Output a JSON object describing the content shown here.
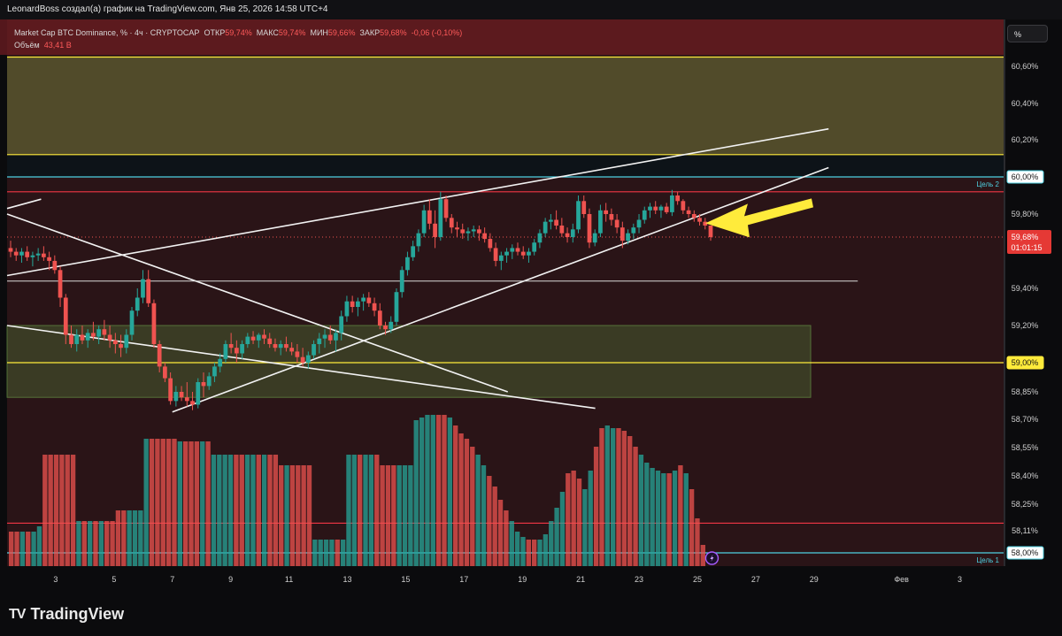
{
  "header": {
    "title": "LeonardBoss создал(а) график на TradingView.com, Янв 25, 2026 14:58 UTC+4"
  },
  "legend": {
    "symbol": "Market Cap BTC Dominance, %",
    "interval": "4ч",
    "exchange": "CRYPTOCAP",
    "open_label": "ОТКР",
    "open_value": "59,74%",
    "high_label": "МАКС",
    "high_value": "59,74%",
    "low_label": "МИН",
    "low_value": "59,66%",
    "close_label": "ЗАКР",
    "close_value": "59,68%",
    "change": "-0,06 (-0,10%)",
    "volume_label": "Объём",
    "volume_value": "43,41 B"
  },
  "unit_button": "%",
  "colors": {
    "bg": "#2a1417",
    "up": "#26a69a",
    "down": "#ef5350",
    "zone_top": "#55512c",
    "zone_mid": "#485b2f",
    "yellow": "#ffeb3b",
    "cyan": "#4dd0e1",
    "red": "#f23645"
  },
  "footer": {
    "logo_text": "TradingView"
  },
  "chart_data": {
    "type": "candlestick",
    "y_range": [
      58.0,
      60.7
    ],
    "price_labels": [
      "60,60%",
      "60,40%",
      "60,20%",
      "59,80%",
      "59,40%",
      "59,20%",
      "58,85%",
      "58,70%",
      "58,55%",
      "58,40%",
      "58,25%",
      "58,11%"
    ],
    "price_label_values": [
      60.6,
      60.4,
      60.2,
      59.8,
      59.4,
      59.2,
      58.85,
      58.7,
      58.55,
      58.4,
      58.25,
      58.11
    ],
    "level_tags": [
      {
        "text": "60,00%",
        "value": 60.0,
        "style": "cyan",
        "note": "Цель 2"
      },
      {
        "text": "59,00%",
        "value": 59.0,
        "style": "yellow"
      },
      {
        "text": "58,00%",
        "value": 58.0,
        "style": "cyan",
        "note": "Цель 1"
      }
    ],
    "current_price": {
      "text": "59,68%",
      "countdown": "01:01:15",
      "value": 59.68
    },
    "x_labels": [
      "3",
      "5",
      "7",
      "9",
      "11",
      "13",
      "15",
      "17",
      "19",
      "21",
      "23",
      "25",
      "27",
      "29",
      "Фев",
      "3"
    ],
    "x_label_dates": [
      "2026-01-03",
      "2026-01-05",
      "2026-01-07",
      "2026-01-09",
      "2026-01-11",
      "2026-01-13",
      "2026-01-15",
      "2026-01-17",
      "2026-01-19",
      "2026-01-21",
      "2026-01-23",
      "2026-01-25",
      "2026-01-27",
      "2026-01-29",
      "2026-02-01",
      "2026-02-03"
    ],
    "x_range": [
      "2026-01-01T08:00",
      "2026-02-04T12:00"
    ],
    "zones": [
      {
        "name": "upper-zone",
        "from": 60.12,
        "to": 60.65
      },
      {
        "name": "mid-zone",
        "from": 58.82,
        "to": 59.2
      }
    ],
    "horizontal_lines": [
      {
        "value": 60.65,
        "color": "yellow"
      },
      {
        "value": 60.12,
        "color": "yellow"
      },
      {
        "value": 60.0,
        "color": "cyan"
      },
      {
        "value": 59.92,
        "color": "red"
      },
      {
        "value": 59.0,
        "color": "yellow"
      },
      {
        "value": 58.15,
        "color": "red"
      },
      {
        "value": 58.0,
        "color": "cyan"
      }
    ],
    "trend_lines": [
      {
        "p1": [
          "2026-01-01T08:00",
          59.47
        ],
        "p2": [
          "2026-01-29T12:00",
          60.26
        ]
      },
      {
        "p1": [
          "2026-01-07T00:00",
          58.74
        ],
        "p2": [
          "2026-01-29T12:00",
          60.05
        ]
      },
      {
        "p1": [
          "2026-01-01T08:00",
          59.8
        ],
        "p2": [
          "2026-01-18T12:00",
          58.85
        ]
      },
      {
        "p1": [
          "2026-01-01T08:00",
          59.2
        ],
        "p2": [
          "2026-01-21T12:00",
          58.76
        ]
      },
      {
        "p1": [
          "2026-01-01T08:00",
          59.83
        ],
        "p2": [
          "2026-01-02T12:00",
          59.88
        ]
      },
      {
        "p1": [
          "2026-01-01T08:00",
          59.44
        ],
        "p2": [
          "2026-01-30T12:00",
          59.44
        ]
      }
    ],
    "candles": [
      [
        59.62,
        59.66,
        59.57,
        59.6
      ],
      [
        59.6,
        59.62,
        59.55,
        59.58
      ],
      [
        59.58,
        59.62,
        59.54,
        59.6
      ],
      [
        59.6,
        59.63,
        59.55,
        59.57
      ],
      [
        59.57,
        59.6,
        59.52,
        59.58
      ],
      [
        59.58,
        59.62,
        59.55,
        59.59
      ],
      [
        59.59,
        59.63,
        59.55,
        59.57
      ],
      [
        59.57,
        59.6,
        59.5,
        59.55
      ],
      [
        59.55,
        59.58,
        59.48,
        59.5
      ],
      [
        59.5,
        59.52,
        59.3,
        59.35
      ],
      [
        59.35,
        59.37,
        59.1,
        59.15
      ],
      [
        59.15,
        59.2,
        59.08,
        59.1
      ],
      [
        59.1,
        59.18,
        59.06,
        59.15
      ],
      [
        59.15,
        59.2,
        59.1,
        59.12
      ],
      [
        59.12,
        59.18,
        59.08,
        59.16
      ],
      [
        59.16,
        59.22,
        59.12,
        59.14
      ],
      [
        59.14,
        59.2,
        59.1,
        59.18
      ],
      [
        59.18,
        59.23,
        59.12,
        59.15
      ],
      [
        59.15,
        59.2,
        59.08,
        59.12
      ],
      [
        59.12,
        59.16,
        59.05,
        59.1
      ],
      [
        59.1,
        59.15,
        59.03,
        59.08
      ],
      [
        59.08,
        59.18,
        59.05,
        59.15
      ],
      [
        59.15,
        59.3,
        59.12,
        59.28
      ],
      [
        59.28,
        59.4,
        59.25,
        59.35
      ],
      [
        59.35,
        59.5,
        59.32,
        59.45
      ],
      [
        59.45,
        59.5,
        59.3,
        59.32
      ],
      [
        59.32,
        59.34,
        59.08,
        59.1
      ],
      [
        59.1,
        59.12,
        58.95,
        58.98
      ],
      [
        58.98,
        59.0,
        58.9,
        58.92
      ],
      [
        58.92,
        58.95,
        58.78,
        58.8
      ],
      [
        58.8,
        58.88,
        58.77,
        58.85
      ],
      [
        58.85,
        58.88,
        58.8,
        58.82
      ],
      [
        58.82,
        58.9,
        58.77,
        58.8
      ],
      [
        58.8,
        58.85,
        58.75,
        58.78
      ],
      [
        58.78,
        58.92,
        58.76,
        58.9
      ],
      [
        58.9,
        58.95,
        58.82,
        58.88
      ],
      [
        58.88,
        58.95,
        58.86,
        58.93
      ],
      [
        58.93,
        59.0,
        58.9,
        58.98
      ],
      [
        58.98,
        59.05,
        58.95,
        59.02
      ],
      [
        59.02,
        59.12,
        59.0,
        59.1
      ],
      [
        59.1,
        59.16,
        59.05,
        59.08
      ],
      [
        59.08,
        59.12,
        59.0,
        59.05
      ],
      [
        59.05,
        59.12,
        59.02,
        59.1
      ],
      [
        59.1,
        59.16,
        59.08,
        59.14
      ],
      [
        59.14,
        59.17,
        59.1,
        59.12
      ],
      [
        59.12,
        59.16,
        59.08,
        59.15
      ],
      [
        59.15,
        59.18,
        59.1,
        59.13
      ],
      [
        59.13,
        59.16,
        59.08,
        59.1
      ],
      [
        59.1,
        59.13,
        59.06,
        59.08
      ],
      [
        59.08,
        59.12,
        59.04,
        59.1
      ],
      [
        59.1,
        59.14,
        59.06,
        59.08
      ],
      [
        59.08,
        59.11,
        59.04,
        59.06
      ],
      [
        59.06,
        59.1,
        59.0,
        59.03
      ],
      [
        59.03,
        59.08,
        58.98,
        59.0
      ],
      [
        59.0,
        59.06,
        58.97,
        59.04
      ],
      [
        59.04,
        59.12,
        59.02,
        59.1
      ],
      [
        59.1,
        59.16,
        59.05,
        59.13
      ],
      [
        59.13,
        59.18,
        59.08,
        59.15
      ],
      [
        59.15,
        59.2,
        59.1,
        59.12
      ],
      [
        59.12,
        59.18,
        59.06,
        59.16
      ],
      [
        59.16,
        59.28,
        59.12,
        59.25
      ],
      [
        59.25,
        59.36,
        59.22,
        59.33
      ],
      [
        59.33,
        59.36,
        59.27,
        59.3
      ],
      [
        59.3,
        59.35,
        59.25,
        59.33
      ],
      [
        59.33,
        59.37,
        59.28,
        59.35
      ],
      [
        59.35,
        59.38,
        59.3,
        59.32
      ],
      [
        59.32,
        59.35,
        59.25,
        59.28
      ],
      [
        59.28,
        59.32,
        59.18,
        59.2
      ],
      [
        59.2,
        59.22,
        59.15,
        59.18
      ],
      [
        59.18,
        59.25,
        59.16,
        59.22
      ],
      [
        59.22,
        59.4,
        59.2,
        59.38
      ],
      [
        59.38,
        59.52,
        59.35,
        59.5
      ],
      [
        59.5,
        59.6,
        59.47,
        59.57
      ],
      [
        59.57,
        59.66,
        59.55,
        59.63
      ],
      [
        59.63,
        59.72,
        59.6,
        59.7
      ],
      [
        59.7,
        59.85,
        59.68,
        59.82
      ],
      [
        59.82,
        59.88,
        59.72,
        59.75
      ],
      [
        59.75,
        59.82,
        59.62,
        59.68
      ],
      [
        59.68,
        59.92,
        59.66,
        59.88
      ],
      [
        59.88,
        59.9,
        59.76,
        59.78
      ],
      [
        59.78,
        59.8,
        59.7,
        59.73
      ],
      [
        59.73,
        59.76,
        59.68,
        59.72
      ],
      [
        59.72,
        59.75,
        59.67,
        59.7
      ],
      [
        59.7,
        59.73,
        59.66,
        59.71
      ],
      [
        59.71,
        59.74,
        59.68,
        59.72
      ],
      [
        59.72,
        59.74,
        59.66,
        59.7
      ],
      [
        59.7,
        59.73,
        59.65,
        59.67
      ],
      [
        59.67,
        59.7,
        59.6,
        59.62
      ],
      [
        59.62,
        59.65,
        59.52,
        59.55
      ],
      [
        59.55,
        59.6,
        59.5,
        59.58
      ],
      [
        59.58,
        59.62,
        59.54,
        59.6
      ],
      [
        59.6,
        59.64,
        59.56,
        59.62
      ],
      [
        59.62,
        59.65,
        59.58,
        59.6
      ],
      [
        59.6,
        59.63,
        59.56,
        59.58
      ],
      [
        59.58,
        59.62,
        59.54,
        59.6
      ],
      [
        59.6,
        59.67,
        59.58,
        59.65
      ],
      [
        59.65,
        59.72,
        59.62,
        59.7
      ],
      [
        59.7,
        59.78,
        59.68,
        59.76
      ],
      [
        59.76,
        59.8,
        59.72,
        59.77
      ],
      [
        59.77,
        59.82,
        59.72,
        59.74
      ],
      [
        59.74,
        59.78,
        59.68,
        59.7
      ],
      [
        59.7,
        59.73,
        59.65,
        59.68
      ],
      [
        59.68,
        59.75,
        59.65,
        59.72
      ],
      [
        59.72,
        59.9,
        59.7,
        59.87
      ],
      [
        59.87,
        59.9,
        59.78,
        59.8
      ],
      [
        59.8,
        59.83,
        59.62,
        59.65
      ],
      [
        59.65,
        59.72,
        59.63,
        59.7
      ],
      [
        59.7,
        59.85,
        59.68,
        59.82
      ],
      [
        59.82,
        59.86,
        59.76,
        59.8
      ],
      [
        59.8,
        59.83,
        59.74,
        59.77
      ],
      [
        59.77,
        59.8,
        59.7,
        59.73
      ],
      [
        59.73,
        59.76,
        59.62,
        59.66
      ],
      [
        59.66,
        59.72,
        59.64,
        59.7
      ],
      [
        59.7,
        59.75,
        59.67,
        59.73
      ],
      [
        59.73,
        59.8,
        59.7,
        59.77
      ],
      [
        59.77,
        59.84,
        59.75,
        59.82
      ],
      [
        59.82,
        59.86,
        59.78,
        59.84
      ],
      [
        59.84,
        59.87,
        59.8,
        59.82
      ],
      [
        59.82,
        59.85,
        59.78,
        59.84
      ],
      [
        59.84,
        59.86,
        59.8,
        59.81
      ],
      [
        59.81,
        59.93,
        59.79,
        59.9
      ],
      [
        59.9,
        59.92,
        59.85,
        59.87
      ],
      [
        59.87,
        59.88,
        59.8,
        59.82
      ],
      [
        59.82,
        59.84,
        59.78,
        59.8
      ],
      [
        59.8,
        59.82,
        59.76,
        59.78
      ],
      [
        59.78,
        59.8,
        59.74,
        59.76
      ],
      [
        59.76,
        59.78,
        59.72,
        59.74
      ],
      [
        59.74,
        59.74,
        59.66,
        59.68
      ]
    ],
    "volume_levels": [
      0.13,
      0.13,
      0.13,
      0.13,
      0.13,
      0.15,
      0.42,
      0.42,
      0.42,
      0.42,
      0.42,
      0.42,
      0.17,
      0.17,
      0.17,
      0.17,
      0.17,
      0.17,
      0.17,
      0.21,
      0.21,
      0.21,
      0.21,
      0.21,
      0.48,
      0.48,
      0.48,
      0.48,
      0.48,
      0.48,
      0.47,
      0.47,
      0.47,
      0.47,
      0.47,
      0.47,
      0.42,
      0.42,
      0.42,
      0.42,
      0.42,
      0.42,
      0.42,
      0.42,
      0.42,
      0.42,
      0.42,
      0.42,
      0.38,
      0.38,
      0.38,
      0.38,
      0.38,
      0.38,
      0.1,
      0.1,
      0.1,
      0.1,
      0.1,
      0.1,
      0.42,
      0.42,
      0.42,
      0.42,
      0.42,
      0.42,
      0.38,
      0.38,
      0.38,
      0.38,
      0.38,
      0.38,
      0.55,
      0.56,
      0.57,
      0.57,
      0.57,
      0.57,
      0.56,
      0.53,
      0.5,
      0.48,
      0.45,
      0.42,
      0.38,
      0.34,
      0.3,
      0.25,
      0.21,
      0.17,
      0.13,
      0.11,
      0.1,
      0.1,
      0.1,
      0.12,
      0.17,
      0.22,
      0.28,
      0.35,
      0.36,
      0.33,
      0.29,
      0.36,
      0.45,
      0.52,
      0.53,
      0.52,
      0.52,
      0.51,
      0.49,
      0.45,
      0.42,
      0.39,
      0.37,
      0.36,
      0.35,
      0.35,
      0.36,
      0.38,
      0.35,
      0.29,
      0.18,
      0.08
    ],
    "volume_max_label": "43,41 B",
    "arrow_pointing_to": {
      "date": "2026-01-24T16:00",
      "value": 59.78
    }
  }
}
